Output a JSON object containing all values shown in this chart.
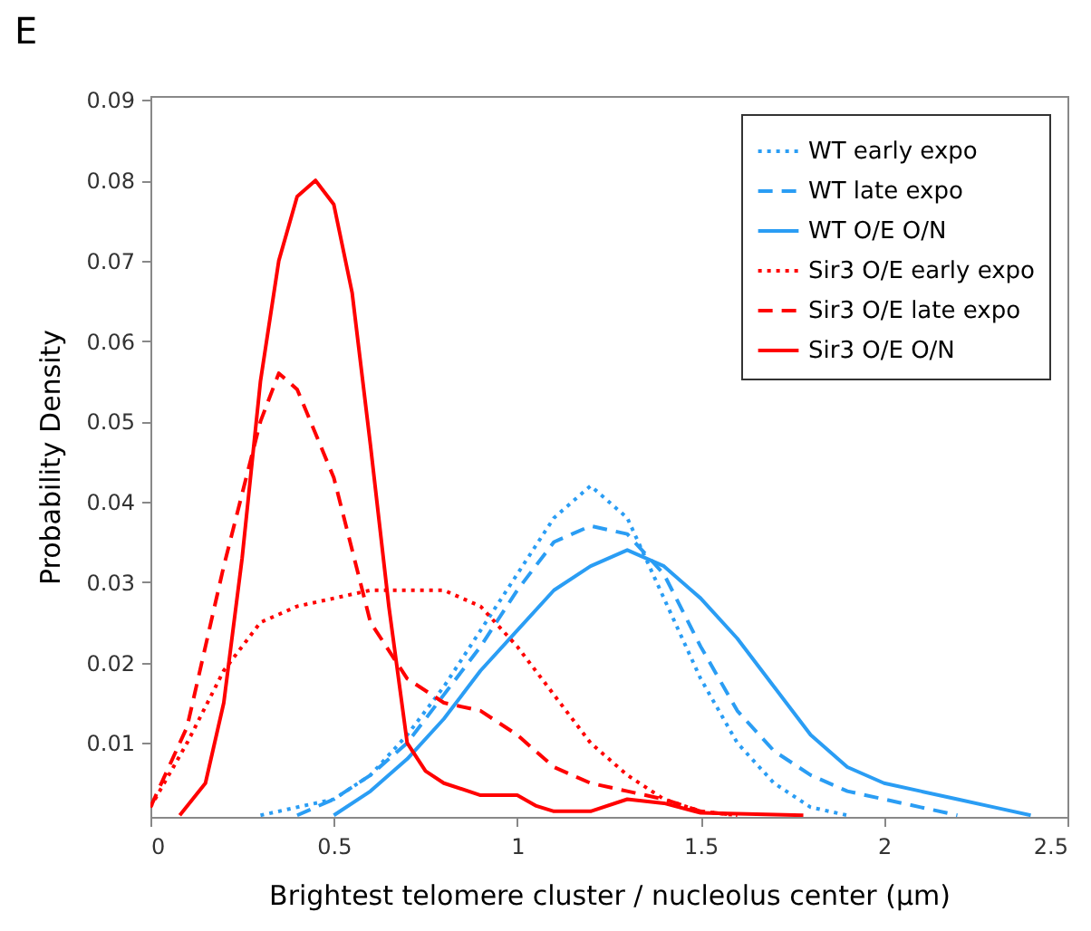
{
  "chart_data": {
    "type": "line",
    "xlabel": "Brightest telomere cluster / nucleolus center  (µm)",
    "ylabel": "Probability Density",
    "annotations": [
      "E"
    ],
    "xlim": [
      0,
      2.5
    ],
    "xticks": [
      0,
      0.5,
      1,
      1.5,
      2,
      2.5
    ],
    "ylim": [
      0.0008,
      0.0905
    ],
    "yticks": [
      0.01,
      0.02,
      0.03,
      0.04,
      0.05,
      0.06,
      0.07,
      0.08,
      0.09
    ],
    "grid": false,
    "legend": "top right",
    "marker": "none",
    "series": [
      {
        "name": "WT early expo",
        "color": "#2a9df4",
        "line_style": "dotted",
        "x": [
          0.3,
          0.5,
          0.6,
          0.7,
          0.8,
          0.9,
          1.0,
          1.1,
          1.2,
          1.3,
          1.4,
          1.5,
          1.6,
          1.7,
          1.8,
          1.9
        ],
        "values": [
          0.001,
          0.003,
          0.006,
          0.011,
          0.017,
          0.024,
          0.031,
          0.038,
          0.042,
          0.038,
          0.028,
          0.018,
          0.01,
          0.005,
          0.002,
          0.001
        ]
      },
      {
        "name": "WT late expo",
        "color": "#2a9df4",
        "line_style": "dashed",
        "x": [
          0.4,
          0.5,
          0.6,
          0.7,
          0.8,
          0.9,
          1.0,
          1.1,
          1.2,
          1.3,
          1.4,
          1.5,
          1.6,
          1.7,
          1.8,
          1.9,
          2.0,
          2.1,
          2.2
        ],
        "values": [
          0.001,
          0.003,
          0.006,
          0.01,
          0.016,
          0.022,
          0.029,
          0.035,
          0.037,
          0.036,
          0.031,
          0.022,
          0.014,
          0.009,
          0.006,
          0.004,
          0.003,
          0.002,
          0.001
        ]
      },
      {
        "name": "WT O/E O/N",
        "color": "#2a9df4",
        "line_style": "solid",
        "x": [
          0.5,
          0.6,
          0.7,
          0.8,
          0.9,
          1.0,
          1.1,
          1.2,
          1.3,
          1.4,
          1.5,
          1.6,
          1.7,
          1.8,
          1.9,
          2.0,
          2.1,
          2.2,
          2.3,
          2.4
        ],
        "values": [
          0.001,
          0.004,
          0.008,
          0.013,
          0.019,
          0.024,
          0.029,
          0.032,
          0.034,
          0.032,
          0.028,
          0.023,
          0.017,
          0.011,
          0.007,
          0.005,
          0.004,
          0.003,
          0.002,
          0.001
        ]
      },
      {
        "name": "Sir3 O/E early expo",
        "color": "#ff0000",
        "line_style": "dotted",
        "x": [
          0,
          0.1,
          0.2,
          0.3,
          0.4,
          0.5,
          0.6,
          0.7,
          0.8,
          0.9,
          1.0,
          1.1,
          1.2,
          1.3,
          1.4,
          1.5,
          1.6
        ],
        "values": [
          0.002,
          0.01,
          0.019,
          0.025,
          0.027,
          0.028,
          0.029,
          0.029,
          0.029,
          0.027,
          0.022,
          0.016,
          0.01,
          0.006,
          0.003,
          0.0015,
          0.001
        ]
      },
      {
        "name": "Sir3 O/E late expo",
        "color": "#ff0000",
        "line_style": "dashed",
        "x": [
          0,
          0.1,
          0.2,
          0.3,
          0.35,
          0.4,
          0.5,
          0.6,
          0.7,
          0.8,
          0.9,
          1.0,
          1.1,
          1.2,
          1.3,
          1.4,
          1.5,
          1.6
        ],
        "values": [
          0.002,
          0.012,
          0.032,
          0.05,
          0.056,
          0.054,
          0.043,
          0.025,
          0.018,
          0.015,
          0.014,
          0.011,
          0.007,
          0.005,
          0.004,
          0.003,
          0.0015,
          0.001
        ]
      },
      {
        "name": "Sir3 O/E O/N",
        "color": "#ff0000",
        "line_style": "solid",
        "x": [
          0.08,
          0.15,
          0.2,
          0.25,
          0.3,
          0.35,
          0.4,
          0.45,
          0.5,
          0.55,
          0.6,
          0.65,
          0.7,
          0.75,
          0.8,
          0.9,
          1.0,
          1.05,
          1.1,
          1.2,
          1.3,
          1.4,
          1.5,
          1.6,
          1.78
        ],
        "values": [
          0.001,
          0.005,
          0.015,
          0.033,
          0.055,
          0.07,
          0.078,
          0.08,
          0.077,
          0.066,
          0.047,
          0.027,
          0.01,
          0.0065,
          0.005,
          0.0035,
          0.0035,
          0.0022,
          0.0015,
          0.0015,
          0.003,
          0.0025,
          0.0013,
          0.0012,
          0.001
        ]
      }
    ]
  }
}
